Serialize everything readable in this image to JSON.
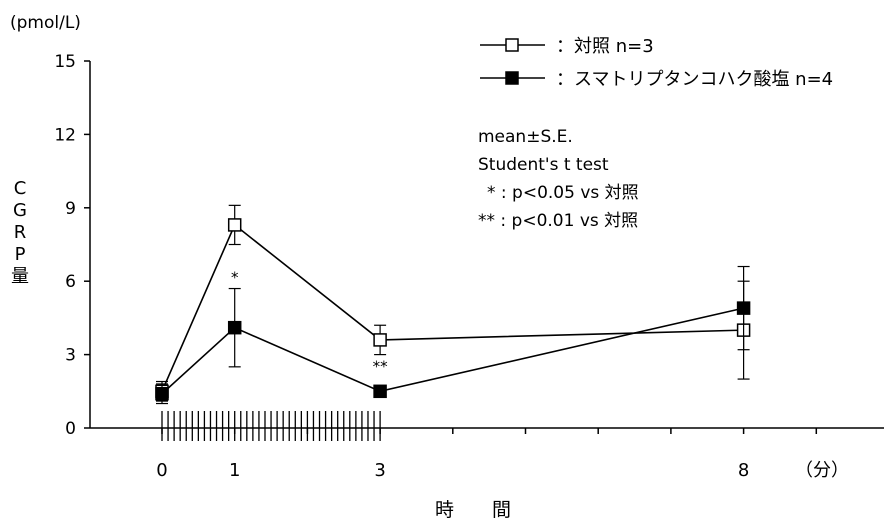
{
  "chart_data": {
    "type": "line",
    "y_unit": "(pmol/L)",
    "ylabel": "CGRP量",
    "xlabel": "時　　間",
    "x_unit": "（分）",
    "ylim": [
      0,
      15
    ],
    "y_ticks": [
      0,
      3,
      6,
      9,
      12,
      15
    ],
    "x_tick_labels": [
      "0",
      "1",
      "3",
      "8"
    ],
    "x_tick_positions_minutes": [
      0,
      1,
      3,
      8
    ],
    "x_minor_ticks_minutes": [
      0,
      1,
      2,
      3,
      4,
      5,
      6,
      7,
      8,
      9,
      10
    ],
    "administration_period_minutes": [
      0,
      3
    ],
    "series": [
      {
        "name": "：対照  n=3",
        "marker": "open-square",
        "color": "#000000",
        "x": [
          0,
          1,
          3,
          8
        ],
        "y": [
          1.5,
          8.3,
          3.6,
          4.0
        ],
        "error": [
          0.4,
          0.8,
          0.6,
          2.0
        ]
      },
      {
        "name": "：スマトリプタンコハク酸塩  n=4",
        "marker": "filled-square",
        "color": "#000000",
        "x": [
          0,
          1,
          3,
          8
        ],
        "y": [
          1.4,
          4.1,
          1.5,
          4.9
        ],
        "error": [
          0.4,
          1.6,
          0.1,
          1.7
        ]
      }
    ],
    "significance": [
      {
        "x": 1,
        "mark": "*"
      },
      {
        "x": 3,
        "mark": "**"
      }
    ],
    "notes": [
      "mean±S.E.",
      "Student's t  test",
      "  * : p<0.05 vs 対照",
      "** : p<0.01 vs 対照"
    ]
  }
}
